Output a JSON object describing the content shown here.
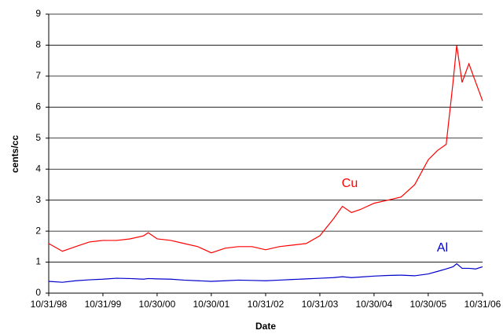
{
  "chart_data": {
    "type": "line",
    "xlabel": "Date",
    "ylabel": "cents/cc",
    "x": [
      "1998-10-31",
      "1999-01-31",
      "1999-04-30",
      "1999-07-31",
      "1999-10-31",
      "2000-01-31",
      "2000-04-30",
      "2000-07-31",
      "2000-08-31",
      "2000-10-31",
      "2001-01-31",
      "2001-04-30",
      "2001-07-31",
      "2001-10-30",
      "2002-01-31",
      "2002-04-30",
      "2002-07-31",
      "2002-10-31",
      "2003-01-31",
      "2003-04-30",
      "2003-07-31",
      "2003-10-31",
      "2004-01-31",
      "2004-03-31",
      "2004-05-31",
      "2004-07-31",
      "2004-10-30",
      "2005-01-31",
      "2005-04-30",
      "2005-07-31",
      "2005-10-30",
      "2005-12-31",
      "2006-02-28",
      "2006-04-15",
      "2006-05-10",
      "2006-06-15",
      "2006-07-31",
      "2006-09-15",
      "2006-10-31"
    ],
    "series": [
      {
        "name": "Cu",
        "color": "#ff0000",
        "values": [
          1.6,
          1.35,
          1.5,
          1.65,
          1.7,
          1.7,
          1.75,
          1.85,
          1.95,
          1.75,
          1.7,
          1.6,
          1.5,
          1.3,
          1.45,
          1.5,
          1.5,
          1.4,
          1.5,
          1.55,
          1.6,
          1.85,
          2.4,
          2.8,
          2.6,
          2.7,
          2.9,
          3.0,
          3.1,
          3.5,
          4.3,
          4.6,
          4.8,
          6.8,
          8.0,
          6.8,
          7.4,
          6.8,
          6.2
        ]
      },
      {
        "name": "Al",
        "color": "#0000cc",
        "values": [
          0.38,
          0.35,
          0.4,
          0.43,
          0.45,
          0.48,
          0.47,
          0.45,
          0.47,
          0.46,
          0.45,
          0.42,
          0.4,
          0.38,
          0.4,
          0.42,
          0.41,
          0.4,
          0.42,
          0.44,
          0.46,
          0.48,
          0.5,
          0.53,
          0.5,
          0.52,
          0.55,
          0.57,
          0.58,
          0.56,
          0.62,
          0.7,
          0.78,
          0.85,
          0.95,
          0.8,
          0.8,
          0.78,
          0.85
        ]
      }
    ],
    "ylim": [
      0,
      9
    ],
    "yticks": [
      0,
      1,
      2,
      3,
      4,
      5,
      6,
      7,
      8,
      9
    ],
    "xlim": [
      "1998-10-31",
      "2006-10-31"
    ],
    "xticks": [
      {
        "value": "1998-10-31",
        "label": "10/31/98"
      },
      {
        "value": "1999-10-31",
        "label": "10/31/99"
      },
      {
        "value": "2000-10-30",
        "label": "10/30/00"
      },
      {
        "value": "2001-10-30",
        "label": "10/30/01"
      },
      {
        "value": "2002-10-31",
        "label": "10/31/02"
      },
      {
        "value": "2003-10-31",
        "label": "10/31/03"
      },
      {
        "value": "2004-10-30",
        "label": "10/30/04"
      },
      {
        "value": "2005-10-30",
        "label": "10/30/05"
      },
      {
        "value": "2006-10-31",
        "label": "10/31/06"
      }
    ],
    "grid": true
  }
}
